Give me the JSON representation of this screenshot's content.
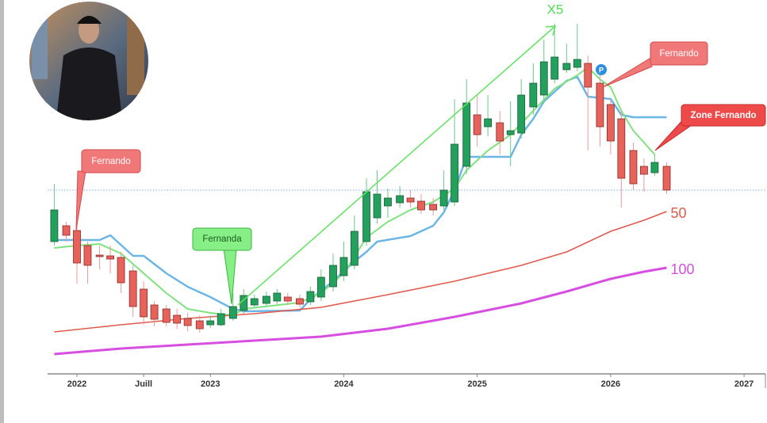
{
  "chart_data": {
    "type": "candlestick",
    "x": [
      2021.83,
      2021.92,
      2022.0,
      2022.08,
      2022.17,
      2022.25,
      2022.33,
      2022.42,
      2022.5,
      2022.58,
      2022.67,
      2022.75,
      2022.83,
      2022.92,
      2023.0,
      2023.08,
      2023.17,
      2023.25,
      2023.33,
      2023.42,
      2023.5,
      2023.58,
      2023.67,
      2023.75,
      2023.83,
      2023.92,
      2024.0,
      2024.08,
      2024.17,
      2024.25,
      2024.33,
      2024.42,
      2024.5,
      2024.58,
      2024.67,
      2024.75,
      2024.83,
      2024.92,
      2025.0,
      2025.08,
      2025.17,
      2025.25,
      2025.33,
      2025.42,
      2025.5,
      2025.58,
      2025.67,
      2025.75,
      2025.83,
      2025.92,
      2026.0,
      2026.08,
      2026.17,
      2026.25,
      2026.33,
      2026.42
    ],
    "open": [
      167,
      187,
      181,
      162,
      150,
      149,
      147,
      130,
      107,
      87,
      82,
      74,
      70,
      67,
      62,
      62,
      70,
      80,
      87,
      89,
      92,
      97,
      95,
      91,
      97,
      110,
      124,
      137,
      167,
      197,
      212,
      216,
      222,
      218,
      214,
      212,
      217,
      262,
      327,
      312,
      317,
      302,
      304,
      337,
      352,
      372,
      384,
      387,
      392,
      367,
      340,
      322,
      282,
      262,
      254,
      262
    ],
    "close": [
      207,
      175,
      140,
      137,
      148,
      145,
      115,
      85,
      72,
      69,
      65,
      64,
      61,
      57,
      67,
      76,
      85,
      99,
      95,
      98,
      102,
      92,
      88,
      104,
      122,
      137,
      147,
      180,
      230,
      227,
      222,
      225,
      217,
      207,
      207,
      232,
      290,
      342,
      302,
      322,
      294,
      307,
      352,
      367,
      394,
      400,
      392,
      397,
      362,
      312,
      294,
      247,
      240,
      252,
      267,
      232
    ],
    "high": [
      240,
      192,
      202,
      167,
      162,
      162,
      154,
      137,
      117,
      92,
      87,
      82,
      77,
      74,
      74,
      82,
      102,
      107,
      100,
      104,
      107,
      102,
      100,
      110,
      132,
      152,
      167,
      200,
      247,
      257,
      234,
      237,
      232,
      227,
      222,
      257,
      347,
      372,
      352,
      352,
      332,
      344,
      372,
      392,
      422,
      442,
      417,
      442,
      402,
      377,
      347,
      332,
      292,
      272,
      277,
      267
    ],
    "low": [
      162,
      167,
      114,
      114,
      132,
      127,
      102,
      72,
      62,
      60,
      60,
      57,
      54,
      52,
      58,
      60,
      67,
      76,
      84,
      86,
      88,
      87,
      84,
      87,
      92,
      104,
      117,
      132,
      162,
      190,
      197,
      210,
      210,
      202,
      200,
      207,
      212,
      252,
      287,
      300,
      277,
      262,
      297,
      327,
      342,
      367,
      380,
      382,
      282,
      287,
      277,
      210,
      232,
      230,
      250,
      227
    ],
    "up_color": "#22a05c",
    "down_color": "#e8625c",
    "series": [
      {
        "color": "#6cb6e6",
        "width": 2.5,
        "x": [
          2021.83,
          2022.17,
          2022.25,
          2022.42,
          2022.5,
          2022.67,
          2022.83,
          2023.0,
          2023.17,
          2023.25,
          2023.67,
          2023.75,
          2023.92,
          2024.08,
          2024.17,
          2024.25,
          2024.5,
          2024.67,
          2024.75,
          2024.83,
          2024.92,
          2025.25,
          2025.33,
          2025.42,
          2025.5,
          2025.67,
          2025.75,
          2025.83,
          2026.0,
          2026.08,
          2026.17,
          2026.42
        ],
        "values": [
          169,
          169,
          175,
          149,
          149,
          127,
          110,
          97,
          82,
          79,
          80,
          94,
          117,
          142,
          154,
          167,
          174,
          187,
          204,
          232,
          274,
          274,
          302,
          322,
          344,
          370,
          375,
          350,
          347,
          327,
          324,
          324
        ]
      },
      {
        "color": "#7fe27f",
        "width": 2,
        "x": [
          2021.83,
          2022.0,
          2022.17,
          2022.33,
          2022.5,
          2022.67,
          2022.83,
          2023.0,
          2023.17,
          2023.25,
          2023.67,
          2023.83,
          2024.0,
          2024.17,
          2024.33,
          2024.5,
          2024.67,
          2024.83,
          2024.92,
          2025.08,
          2025.25,
          2025.42,
          2025.58,
          2025.75,
          2025.83,
          2025.92,
          2026.0,
          2026.08,
          2026.17,
          2026.33
        ],
        "values": [
          159,
          162,
          164,
          152,
          127,
          102,
          82,
          77,
          74,
          82,
          90,
          102,
          127,
          172,
          192,
          207,
          217,
          234,
          257,
          282,
          302,
          332,
          360,
          377,
          387,
          372,
          362,
          332,
          307,
          277
        ]
      },
      {
        "name": "50",
        "color": "#e05a4e",
        "width": 1.6,
        "x": [
          2021.83,
          2022.33,
          2022.83,
          2023.33,
          2023.83,
          2024.33,
          2024.83,
          2025.33,
          2025.67,
          2026.0,
          2026.25,
          2026.42
        ],
        "values": [
          53,
          62,
          70,
          76,
          84,
          100,
          117,
          137,
          154,
          180,
          194,
          205
        ]
      },
      {
        "name": "100",
        "color": "#d64fe0",
        "width": 3,
        "x": [
          2021.83,
          2022.33,
          2022.83,
          2023.33,
          2023.83,
          2024.33,
          2024.83,
          2025.33,
          2025.67,
          2026.0,
          2026.25,
          2026.42
        ],
        "values": [
          25,
          32,
          37,
          42,
          47,
          57,
          72,
          89,
          104,
          120,
          129,
          134
        ]
      }
    ],
    "price_line": 232,
    "xlim": [
      2021.78,
      2027.16
    ],
    "xticks": [
      2022,
      {
        "value": 2022.5,
        "label": "Juill"
      },
      2023,
      2024,
      2025,
      2026,
      2027
    ],
    "ylim": [
      0,
      472
    ],
    "annotations": {
      "trend": "X5",
      "callout_1": "Fernando",
      "callout_2": "Fernanda",
      "callout_3": "Fernando",
      "callout_4": "Zone Fernando",
      "marker": "P"
    }
  }
}
